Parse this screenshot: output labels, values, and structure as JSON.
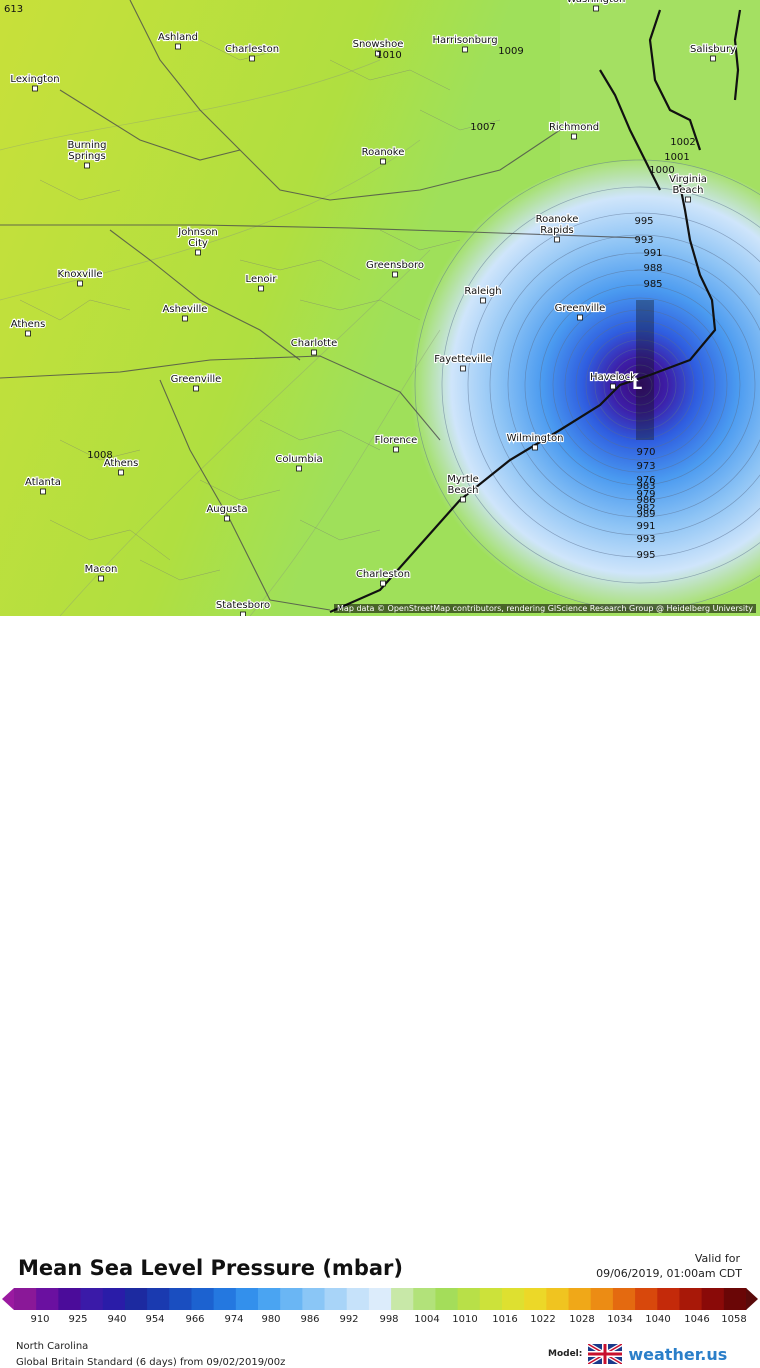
{
  "map": {
    "corner_label": "613",
    "attribution": "Map data © OpenStreetMap contributors, rendering GIScience Research Group @ Heidelberg University",
    "cities": [
      {
        "name": "Ashland"
      },
      {
        "name": "Charleston"
      },
      {
        "name": "Snowshoe"
      },
      {
        "name": "Harrisonburg"
      },
      {
        "name": "Lexington"
      },
      {
        "name": "Burning Springs"
      },
      {
        "name": "Roanoke"
      },
      {
        "name": "Richmond"
      },
      {
        "name": "Salisbury"
      },
      {
        "name": "Virginia Beach"
      },
      {
        "name": "Johnson City"
      },
      {
        "name": "Knoxville"
      },
      {
        "name": "Lenoir"
      },
      {
        "name": "Greensboro"
      },
      {
        "name": "Roanoke Rapids"
      },
      {
        "name": "Asheville"
      },
      {
        "name": "Raleigh"
      },
      {
        "name": "Greenville"
      },
      {
        "name": "Athens"
      },
      {
        "name": "Charlotte"
      },
      {
        "name": "Fayetteville"
      },
      {
        "name": "Greenville"
      },
      {
        "name": "Havelock"
      },
      {
        "name": "Florence"
      },
      {
        "name": "Wilmington"
      },
      {
        "name": "Athens"
      },
      {
        "name": "Columbia"
      },
      {
        "name": "Atlanta"
      },
      {
        "name": "Myrtle Beach"
      },
      {
        "name": "Augusta"
      },
      {
        "name": "Macon"
      },
      {
        "name": "Charleston"
      },
      {
        "name": "Statesboro"
      },
      {
        "name": "Washington"
      }
    ],
    "isobar_labels": [
      "1009",
      "1010",
      "1007",
      "1002",
      "1001",
      "1000",
      "1008",
      "995",
      "993",
      "991",
      "988",
      "985",
      "970",
      "973",
      "976",
      "979",
      "982",
      "983",
      "986",
      "989",
      "991",
      "993",
      "995"
    ],
    "low_center_label": "L"
  },
  "legend": {
    "title": "Mean Sea Level Pressure (mbar)",
    "valid_label": "Valid for",
    "valid_time": "09/06/2019, 01:00am CDT",
    "ticks": [
      "910",
      "925",
      "940",
      "954",
      "966",
      "974",
      "980",
      "986",
      "992",
      "998",
      "1004",
      "1010",
      "1016",
      "1022",
      "1028",
      "1034",
      "1040",
      "1046",
      "1058"
    ]
  },
  "footer": {
    "region": "North Carolina",
    "model_run": "Global Britain Standard (6 days) from 09/02/2019/00z",
    "logo_model_label": "Model:",
    "logo_text": "weather.us"
  }
}
